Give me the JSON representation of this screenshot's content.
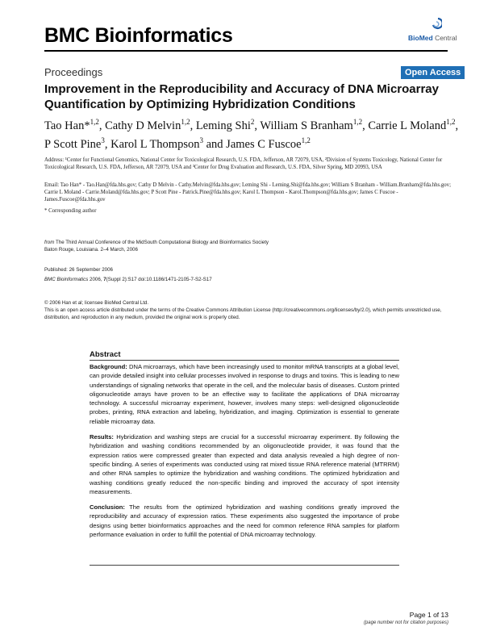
{
  "header": {
    "journal": "BMC Bioinformatics",
    "publisher_bold": "BioMed",
    "publisher_rest": " Central"
  },
  "section_label": "Proceedings",
  "badge": "Open Access",
  "title": "Improvement in the Reproducibility and Accuracy of DNA Microarray Quantification by Optimizing Hybridization Conditions",
  "authors": [
    {
      "name": "Tao Han*",
      "sup": "1,2",
      "sep": ", "
    },
    {
      "name": "Cathy D Melvin",
      "sup": "1,2",
      "sep": ", "
    },
    {
      "name": "Leming Shi",
      "sup": "2",
      "sep": ", "
    },
    {
      "name": "William S Branham",
      "sup": "1,2",
      "sep": ", "
    },
    {
      "name": "Carrie L Moland",
      "sup": "1,2",
      "sep": ", "
    },
    {
      "name": "P Scott Pine",
      "sup": "3",
      "sep": ", "
    },
    {
      "name": "Karol L Thompson",
      "sup": "3",
      "sep": " and "
    },
    {
      "name": "James C Fuscoe",
      "sup": "1,2",
      "sep": ""
    }
  ],
  "address": "Address: ¹Center for Functional Genomics, National Center for Toxicological Research, U.S. FDA, Jefferson, AR 72079, USA, ²Division of Systems Toxicology, National Center for Toxicological Research, U.S. FDA, Jefferson, AR 72079, USA and ³Center for Drug Evaluation and Research, U.S. FDA, Silver Spring, MD 20993, USA",
  "emails": "Email: Tao Han* - Tao.Han@fda.hhs.gov; Cathy D Melvin - Cathy.Melvin@fda.hhs.gov; Leming Shi - Leming.Shi@fda.hhs.gov; William S Branham - William.Branham@fda.hhs.gov; Carrie L Moland - Carrie.Moland@fda.hhs.gov; P Scott Pine - Patrick.Pine@fda.hhs.gov; Karol L Thompson - Karol.Thompson@fda.hhs.gov; James C Fuscoe - James.Fuscoe@fda.hhs.gov",
  "corresponding": "* Corresponding author",
  "from": {
    "prefix": "from",
    "conference": " The Third Annual Conference of the MidSouth Computational Biology and Bioinformatics Society",
    "location": "Baton Rouge, Louisiana. 2–4 March, 2006"
  },
  "published": "Published: 26 September 2006",
  "citation": {
    "journal": "BMC Bioinformatics",
    "year": " 2006, ",
    "volume": "7",
    "rest": "(Suppl 2):S17    doi:10.1186/1471-2105-7-S2-S17"
  },
  "copyright": "© 2006 Han et al; licensee BioMed Central Ltd.",
  "license": "This is an open access article distributed under the terms of the Creative Commons Attribution License (http://creativecommons.org/licenses/by/2.0), which permits unrestricted use, distribution, and reproduction in any medium, provided the original work is properly cited.",
  "abstract": {
    "heading": "Abstract",
    "background_label": "Background:",
    "background": " DNA microarrays, which have been increasingly used to monitor mRNA transcripts at a global level, can provide detailed insight into cellular processes involved in response to drugs and toxins. This is leading to new understandings of signaling networks that operate in the cell, and the molecular basis of diseases. Custom printed oligonucleotide arrays have proven to be an effective way to facilitate the applications of DNA microarray technology. A successful microarray experiment, however, involves many steps: well-designed oligonucleotide probes, printing, RNA extraction and labeling, hybridization, and imaging. Optimization is essential to generate reliable microarray data.",
    "results_label": "Results:",
    "results": " Hybridization and washing steps are crucial for a successful microarray experiment. By following the hybridization and washing conditions recommended by an oligonucleotide provider, it was found that the expression ratios were compressed greater than expected and data analysis revealed a high degree of non-specific binding. A series of experiments was conducted using rat mixed tissue RNA reference material (MTRRM) and other RNA samples to optimize the hybridization and washing conditions. The optimized hybridization and washing conditions greatly reduced the non-specific binding and improved the accuracy of spot intensity measurements.",
    "conclusion_label": "Conclusion:",
    "conclusion": " The results from the optimized hybridization and washing conditions greatly improved the reproducibility and accuracy of expression ratios. These experiments also suggested the importance of probe designs using better bioinformatics approaches and the need for common reference RNA samples for platform performance evaluation in order to fulfill the potential of DNA microarray technology."
  },
  "footer": {
    "page": "Page 1 of 13",
    "note": "(page number not for citation purposes)"
  }
}
